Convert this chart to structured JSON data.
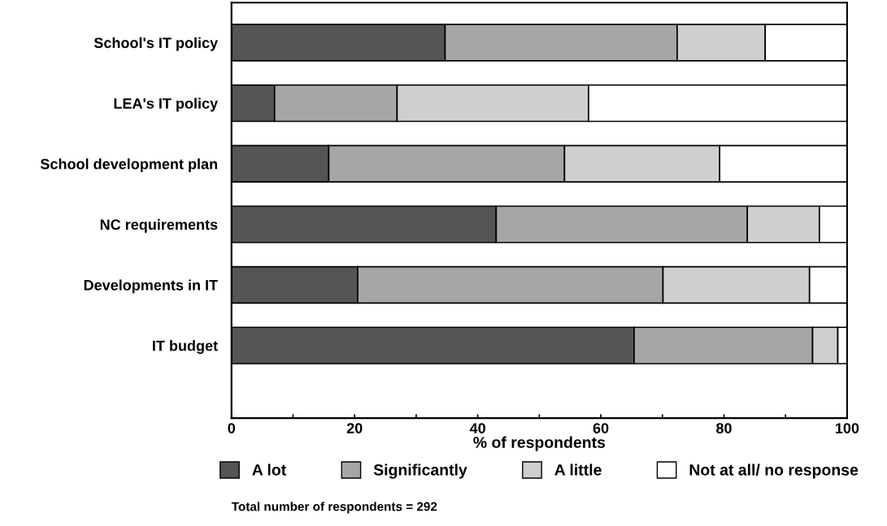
{
  "chart_data": {
    "type": "bar",
    "orientation": "horizontal",
    "stacked": true,
    "categories": [
      "School's IT policy",
      "LEA's IT policy",
      "School development plan",
      "NC requirements",
      "Developments in IT",
      "IT budget"
    ],
    "series": [
      {
        "name": "A lot",
        "color": "#555555",
        "values": [
          34.7,
          7.0,
          15.8,
          43.0,
          20.5,
          65.4
        ]
      },
      {
        "name": "Significantly",
        "color": "#a6a6a6",
        "values": [
          37.7,
          19.9,
          38.3,
          40.8,
          49.6,
          29.0
        ]
      },
      {
        "name": "A little",
        "color": "#cfcfcf",
        "values": [
          14.3,
          31.1,
          25.2,
          11.7,
          23.8,
          4.1
        ]
      },
      {
        "name": "Not at all/ no response",
        "color": "#ffffff",
        "values": [
          13.3,
          42.0,
          20.7,
          4.5,
          6.1,
          1.5
        ]
      }
    ],
    "xlabel": "% of respondents",
    "xlim": [
      0,
      100
    ],
    "xticks": [
      0,
      {
        "value": 10,
        "label": null
      },
      20,
      {
        "value": 30,
        "label": null
      },
      40,
      {
        "value": 50,
        "label": null
      },
      60,
      {
        "value": 70,
        "label": null
      },
      80,
      {
        "value": 90,
        "label": null
      },
      100
    ],
    "grid": false,
    "legend": "bottom",
    "annotations": [
      "Total number of respondents = 292"
    ]
  }
}
